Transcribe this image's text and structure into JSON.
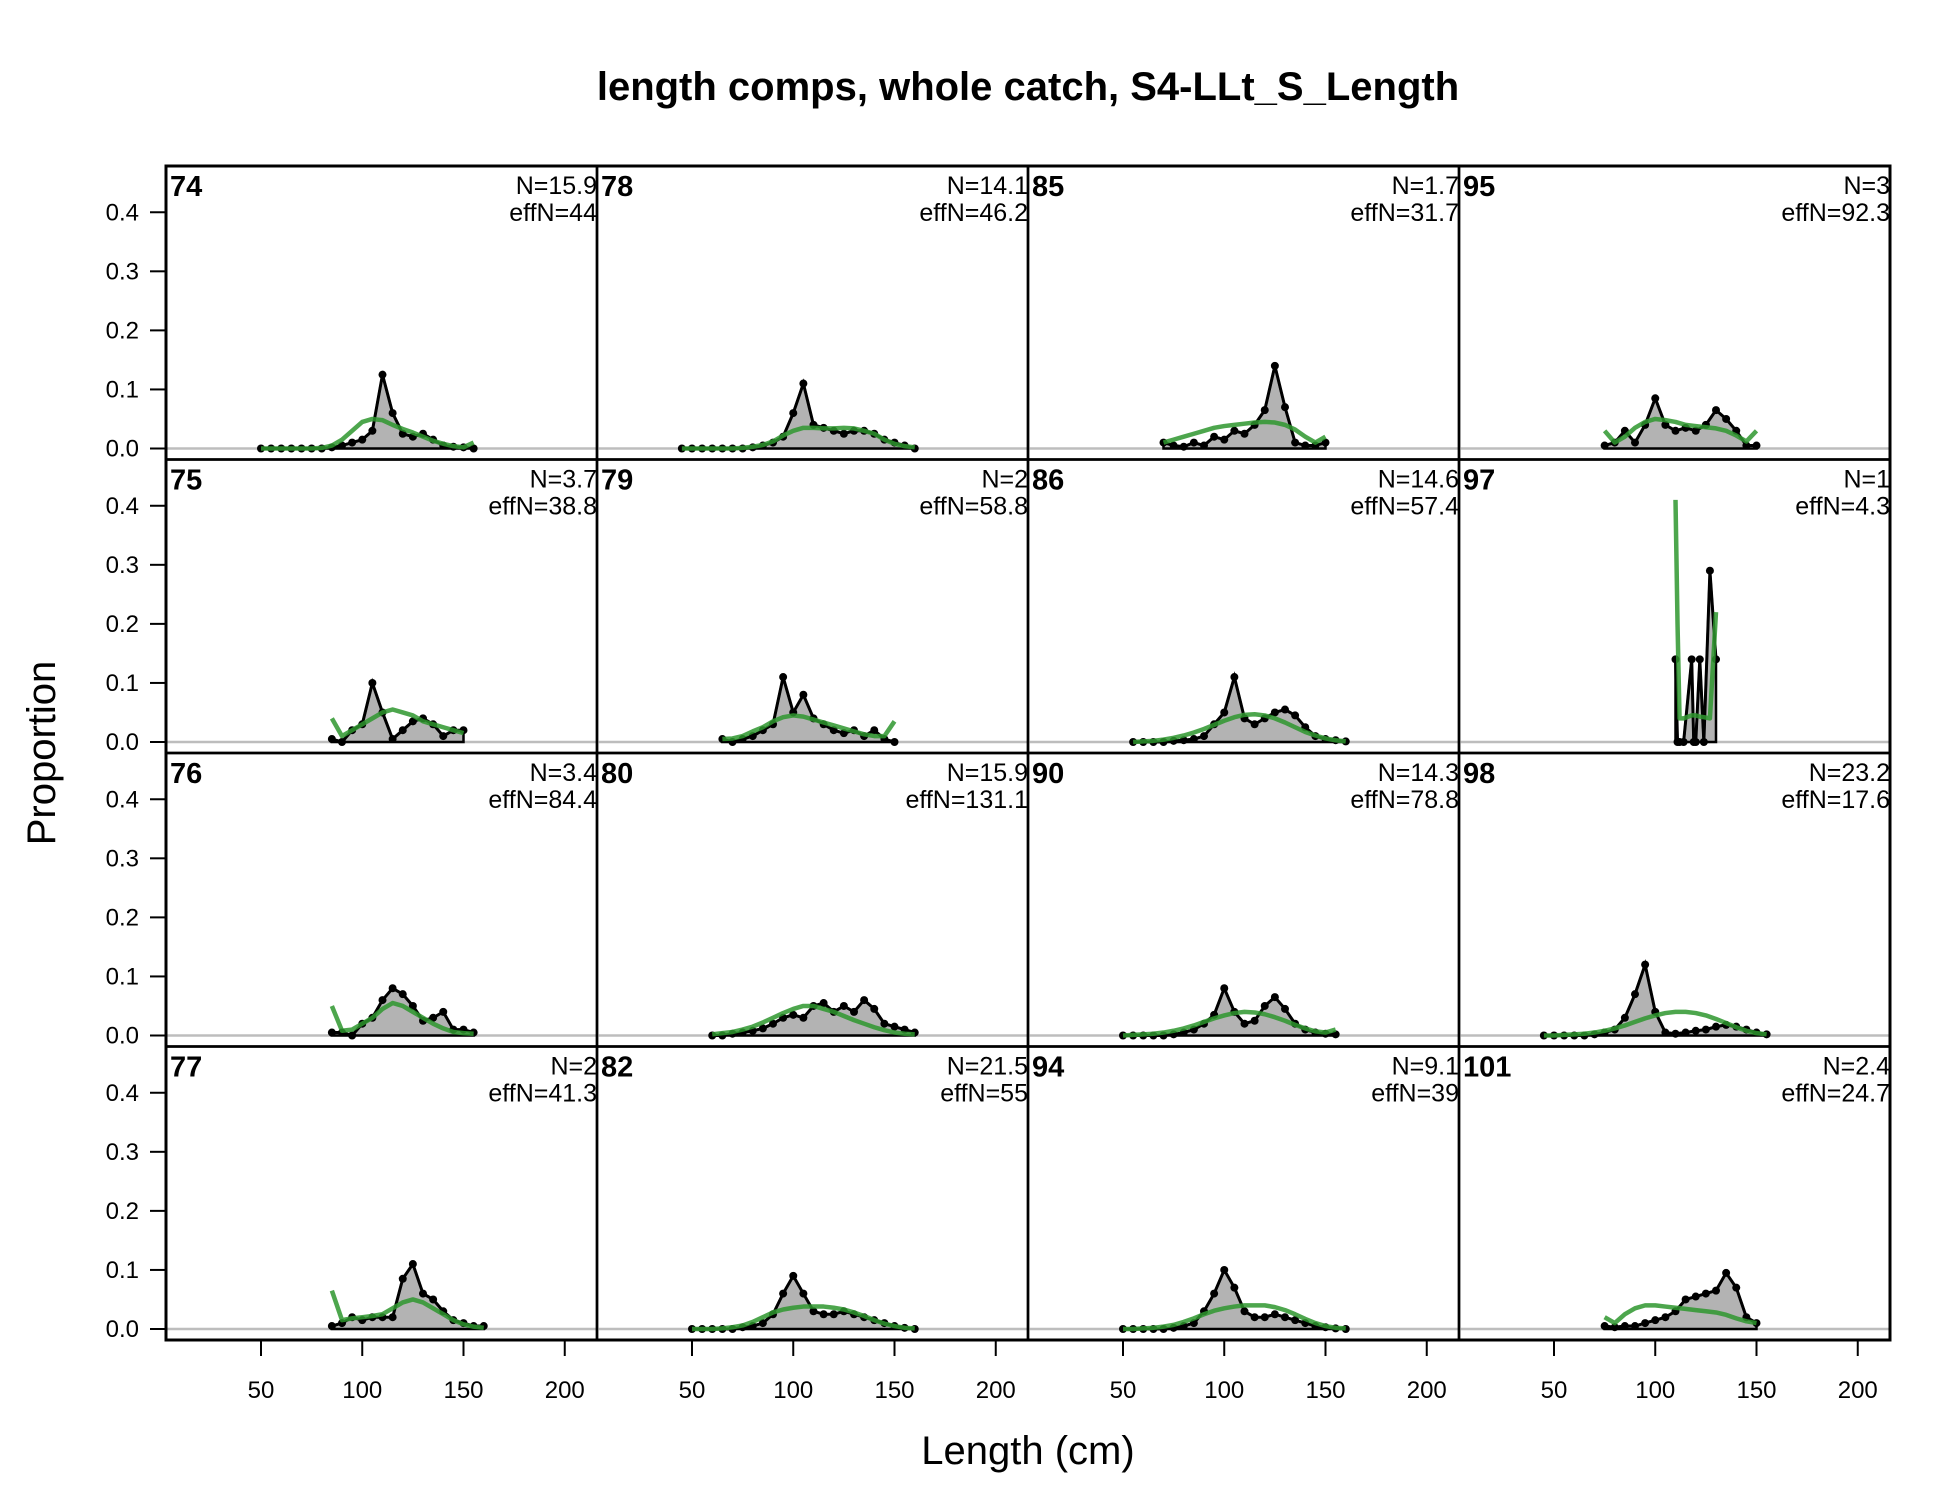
{
  "chart_data": {
    "type": "area",
    "title": "length comps, whole catch, S4-LLt_S_Length",
    "xlabel": "Length (cm)",
    "ylabel": "Proportion",
    "xlim": [
      3,
      216
    ],
    "ylim": [
      -0.017,
      0.48
    ],
    "xticks": [
      "50",
      "100",
      "150",
      "200"
    ],
    "xtick_values": [
      50,
      100,
      150,
      200
    ],
    "yticks": [
      "0.0",
      "0.1",
      "0.2",
      "0.3",
      "0.4"
    ],
    "ytick_values": [
      0,
      0.1,
      0.2,
      0.3,
      0.4
    ],
    "colors": {
      "observed_fill": "#b3b3b3",
      "observed_line": "#000000",
      "expected_line": "#2e962e",
      "zero_line": "#bdbdbd"
    },
    "layout": "4x4 panels, column-major order",
    "panels": [
      {
        "year": "74",
        "N": "N=15.9",
        "effN": "effN=44",
        "x0": 50,
        "step": 5,
        "obs": [
          0,
          0,
          0,
          0,
          0,
          0,
          0,
          0.002,
          0.005,
          0.01,
          0.015,
          0.03,
          0.125,
          0.06,
          0.025,
          0.02,
          0.025,
          0.015,
          0.005,
          0.003,
          0.002,
          0
        ],
        "exp": [
          0,
          0,
          0,
          0,
          0,
          0,
          0.001,
          0.005,
          0.015,
          0.03,
          0.045,
          0.05,
          0.048,
          0.04,
          0.033,
          0.027,
          0.02,
          0.013,
          0.008,
          0.004,
          0.002,
          0.01
        ]
      },
      {
        "year": "75",
        "N": "N=3.7",
        "effN": "effN=38.8",
        "x0": 85,
        "step": 5,
        "obs": [
          0.005,
          0,
          0.02,
          0.03,
          0.1,
          0.05,
          0.005,
          0.02,
          0.035,
          0.04,
          0.03,
          0.01,
          0.02,
          0.02
        ],
        "exp": [
          0.04,
          0.01,
          0.02,
          0.03,
          0.04,
          0.05,
          0.055,
          0.05,
          0.045,
          0.035,
          0.03,
          0.025,
          0.02,
          0.015
        ]
      },
      {
        "year": "76",
        "N": "N=3.4",
        "effN": "effN=84.4",
        "x0": 85,
        "step": 5,
        "obs": [
          0.005,
          0.005,
          0,
          0.02,
          0.03,
          0.06,
          0.08,
          0.07,
          0.05,
          0.025,
          0.03,
          0.04,
          0.01,
          0.01,
          0.005
        ],
        "exp": [
          0.05,
          0.008,
          0.01,
          0.02,
          0.03,
          0.045,
          0.055,
          0.05,
          0.04,
          0.03,
          0.02,
          0.012,
          0.006,
          0.004,
          0.003
        ]
      },
      {
        "year": "77",
        "N": "N=2",
        "effN": "effN=41.3",
        "x0": 85,
        "step": 5,
        "obs": [
          0.005,
          0.01,
          0.02,
          0.015,
          0.02,
          0.02,
          0.02,
          0.085,
          0.11,
          0.06,
          0.05,
          0.03,
          0.015,
          0.01,
          0.005,
          0.005
        ],
        "exp": [
          0.065,
          0.015,
          0.018,
          0.02,
          0.022,
          0.025,
          0.035,
          0.045,
          0.05,
          0.045,
          0.035,
          0.025,
          0.015,
          0.008,
          0.004,
          0.002
        ]
      },
      {
        "year": "78",
        "N": "N=14.1",
        "effN": "effN=46.2",
        "x0": 45,
        "step": 5,
        "obs": [
          0,
          0,
          0,
          0,
          0,
          0,
          0,
          0.002,
          0.005,
          0.01,
          0.02,
          0.06,
          0.11,
          0.04,
          0.035,
          0.03,
          0.025,
          0.03,
          0.03,
          0.025,
          0.015,
          0.01,
          0.005,
          0
        ],
        "exp": [
          0,
          0,
          0,
          0,
          0,
          0,
          0.001,
          0.003,
          0.006,
          0.012,
          0.022,
          0.03,
          0.035,
          0.035,
          0.034,
          0.034,
          0.035,
          0.034,
          0.03,
          0.025,
          0.015,
          0.008,
          0.004,
          0.002
        ]
      },
      {
        "year": "79",
        "N": "N=2",
        "effN": "effN=58.8",
        "x0": 65,
        "step": 5,
        "obs": [
          0.005,
          0,
          0.005,
          0.01,
          0.02,
          0.03,
          0.11,
          0.05,
          0.08,
          0.04,
          0.03,
          0.02,
          0.015,
          0.02,
          0.01,
          0.02,
          0.005,
          0
        ],
        "exp": [
          0.005,
          0.006,
          0.01,
          0.018,
          0.025,
          0.035,
          0.042,
          0.045,
          0.043,
          0.038,
          0.033,
          0.028,
          0.023,
          0.018,
          0.013,
          0.01,
          0.01,
          0.035
        ]
      },
      {
        "year": "80",
        "N": "N=15.9",
        "effN": "effN=131.1",
        "x0": 60,
        "step": 5,
        "obs": [
          0,
          0,
          0.003,
          0.005,
          0.008,
          0.012,
          0.02,
          0.03,
          0.035,
          0.03,
          0.05,
          0.055,
          0.04,
          0.05,
          0.04,
          0.06,
          0.045,
          0.02,
          0.015,
          0.01,
          0.005
        ],
        "exp": [
          0.002,
          0.004,
          0.006,
          0.01,
          0.015,
          0.022,
          0.03,
          0.038,
          0.045,
          0.05,
          0.05,
          0.045,
          0.04,
          0.033,
          0.026,
          0.02,
          0.014,
          0.009,
          0.005,
          0.003,
          0.002
        ]
      },
      {
        "year": "82",
        "N": "N=21.5",
        "effN": "effN=55",
        "x0": 50,
        "step": 5,
        "obs": [
          0,
          0,
          0,
          0,
          0,
          0.003,
          0.005,
          0.01,
          0.025,
          0.06,
          0.09,
          0.06,
          0.03,
          0.025,
          0.025,
          0.03,
          0.025,
          0.02,
          0.015,
          0.01,
          0.005,
          0.002,
          0
        ],
        "exp": [
          0,
          0,
          0,
          0.001,
          0.003,
          0.006,
          0.012,
          0.02,
          0.028,
          0.033,
          0.036,
          0.038,
          0.038,
          0.038,
          0.036,
          0.033,
          0.028,
          0.022,
          0.015,
          0.009,
          0.005,
          0.002,
          0.001
        ]
      },
      {
        "year": "85",
        "N": "N=1.7",
        "effN": "effN=31.7",
        "x0": 70,
        "step": 5,
        "obs": [
          0.01,
          0.005,
          0.003,
          0.01,
          0.005,
          0.02,
          0.015,
          0.03,
          0.025,
          0.04,
          0.065,
          0.14,
          0.07,
          0.01,
          0.005,
          0.005,
          0.01
        ],
        "exp": [
          0.01,
          0.015,
          0.02,
          0.025,
          0.03,
          0.035,
          0.038,
          0.04,
          0.042,
          0.044,
          0.045,
          0.044,
          0.04,
          0.032,
          0.02,
          0.01,
          0.02
        ]
      },
      {
        "year": "86",
        "N": "N=14.6",
        "effN": "effN=57.4",
        "x0": 55,
        "step": 5,
        "obs": [
          0,
          0,
          0,
          0,
          0.002,
          0.003,
          0.005,
          0.01,
          0.03,
          0.05,
          0.11,
          0.04,
          0.03,
          0.04,
          0.05,
          0.055,
          0.045,
          0.025,
          0.01,
          0.005,
          0.003,
          0.001
        ],
        "exp": [
          0,
          0.001,
          0.002,
          0.004,
          0.007,
          0.011,
          0.016,
          0.022,
          0.029,
          0.036,
          0.042,
          0.046,
          0.047,
          0.045,
          0.04,
          0.033,
          0.025,
          0.017,
          0.011,
          0.006,
          0.003,
          0.001
        ]
      },
      {
        "year": "90",
        "N": "N=14.3",
        "effN": "effN=78.8",
        "x0": 50,
        "step": 5,
        "obs": [
          0,
          0,
          0,
          0,
          0,
          0.002,
          0.005,
          0.01,
          0.02,
          0.035,
          0.08,
          0.04,
          0.02,
          0.025,
          0.05,
          0.065,
          0.045,
          0.02,
          0.01,
          0.005,
          0.003,
          0.002
        ],
        "exp": [
          0,
          0.001,
          0.002,
          0.003,
          0.005,
          0.008,
          0.012,
          0.017,
          0.023,
          0.029,
          0.034,
          0.038,
          0.04,
          0.039,
          0.036,
          0.031,
          0.025,
          0.018,
          0.012,
          0.007,
          0.005,
          0.01
        ]
      },
      {
        "year": "94",
        "N": "N=9.1",
        "effN": "effN=39",
        "x0": 50,
        "step": 5,
        "obs": [
          0,
          0,
          0,
          0,
          0,
          0.002,
          0.005,
          0.01,
          0.03,
          0.06,
          0.1,
          0.07,
          0.03,
          0.02,
          0.02,
          0.025,
          0.02,
          0.015,
          0.01,
          0.005,
          0.003,
          0.001,
          0
        ],
        "exp": [
          0,
          0,
          0.001,
          0.002,
          0.004,
          0.007,
          0.012,
          0.018,
          0.025,
          0.031,
          0.035,
          0.038,
          0.04,
          0.04,
          0.04,
          0.037,
          0.032,
          0.025,
          0.017,
          0.01,
          0.005,
          0.002,
          0.001
        ]
      },
      {
        "year": "95",
        "N": "N=3",
        "effN": "effN=92.3",
        "x0": 75,
        "step": 5,
        "obs": [
          0.005,
          0.01,
          0.03,
          0.01,
          0.04,
          0.085,
          0.04,
          0.03,
          0.035,
          0.03,
          0.04,
          0.065,
          0.05,
          0.03,
          0.005,
          0.005
        ],
        "exp": [
          0.03,
          0.01,
          0.02,
          0.035,
          0.045,
          0.05,
          0.048,
          0.045,
          0.04,
          0.038,
          0.036,
          0.034,
          0.03,
          0.022,
          0.012,
          0.03
        ]
      },
      {
        "year": "97",
        "N": "N=1",
        "effN": "effN=4.3",
        "x": [
          110,
          111,
          112,
          114,
          118,
          119,
          120,
          122,
          124,
          127,
          130
        ],
        "obs": [
          0.14,
          0,
          0,
          0,
          0.14,
          0,
          0,
          0.14,
          0,
          0.29,
          0.14
        ],
        "exp": [
          0.41,
          0.2,
          0.04,
          0.04,
          0.045,
          0.045,
          0.045,
          0.043,
          0.042,
          0.04,
          0.22
        ]
      },
      {
        "year": "98",
        "N": "N=23.2",
        "effN": "effN=17.6",
        "x0": 45,
        "step": 5,
        "obs": [
          0,
          0,
          0,
          0,
          0,
          0.002,
          0.005,
          0.01,
          0.03,
          0.07,
          0.12,
          0.04,
          0.005,
          0.003,
          0.005,
          0.008,
          0.01,
          0.015,
          0.018,
          0.015,
          0.01,
          0.005,
          0.002
        ],
        "exp": [
          0,
          0,
          0.001,
          0.002,
          0.003,
          0.005,
          0.008,
          0.012,
          0.017,
          0.023,
          0.029,
          0.034,
          0.038,
          0.04,
          0.04,
          0.038,
          0.034,
          0.028,
          0.021,
          0.014,
          0.008,
          0.004,
          0.002
        ]
      },
      {
        "year": "101",
        "N": "N=2.4",
        "effN": "effN=24.7",
        "x0": 75,
        "step": 5,
        "obs": [
          0.005,
          0.003,
          0.005,
          0.005,
          0.01,
          0.015,
          0.02,
          0.03,
          0.05,
          0.055,
          0.06,
          0.065,
          0.095,
          0.07,
          0.02,
          0.01
        ],
        "exp": [
          0.02,
          0.01,
          0.025,
          0.035,
          0.04,
          0.04,
          0.038,
          0.036,
          0.034,
          0.032,
          0.03,
          0.028,
          0.024,
          0.018,
          0.013,
          0.01
        ]
      }
    ]
  }
}
